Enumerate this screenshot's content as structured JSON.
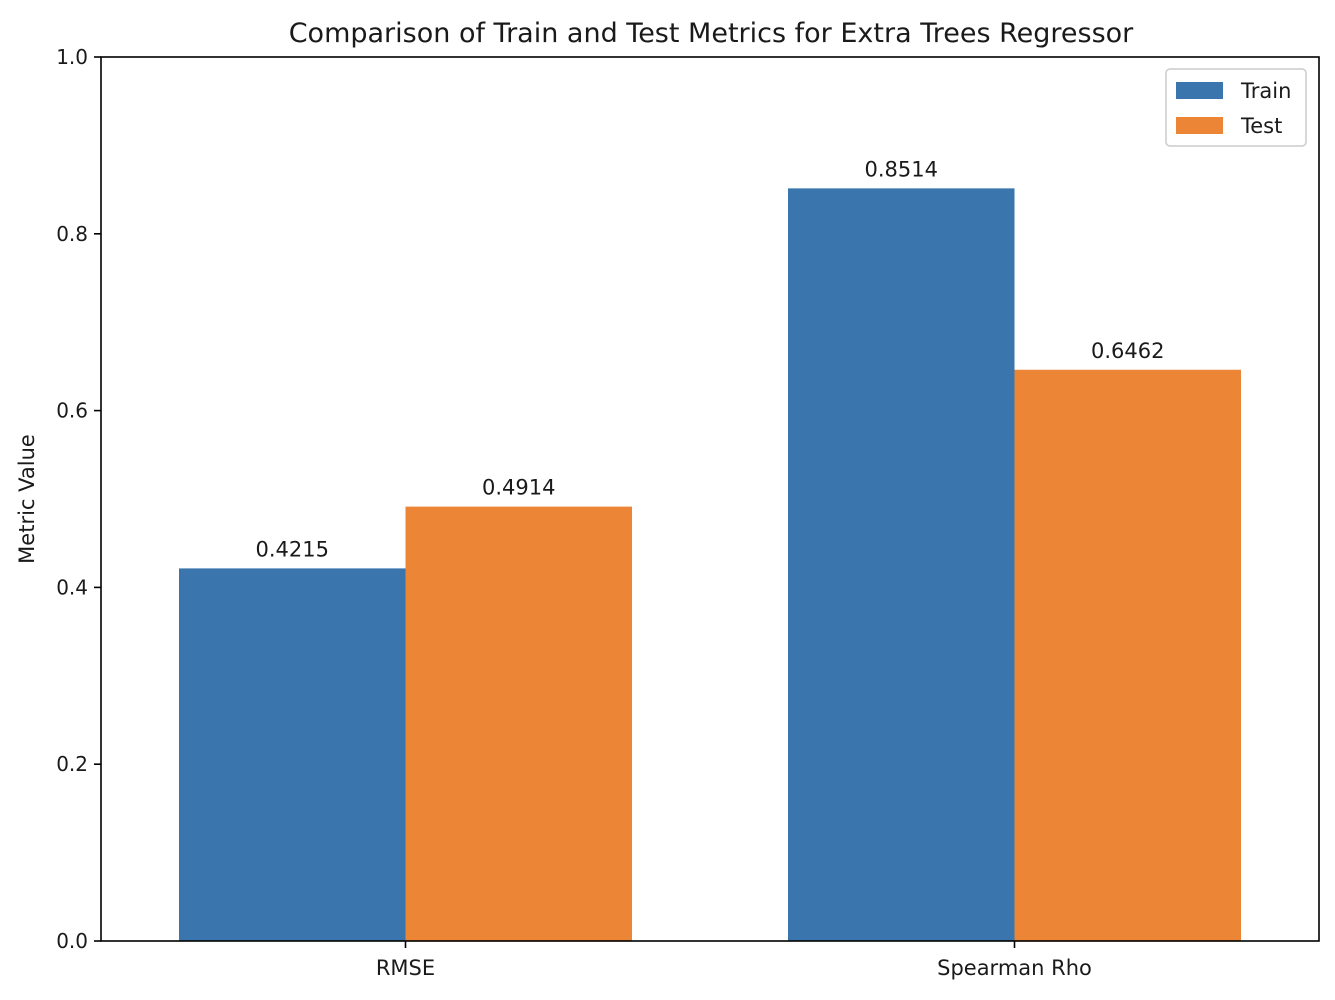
{
  "chart_data": {
    "type": "bar",
    "title": "Comparison of Train and Test Metrics for Extra Trees Regressor",
    "xlabel": "",
    "ylabel": "Metric Value",
    "categories": [
      "RMSE",
      "Spearman Rho"
    ],
    "series": [
      {
        "name": "Train",
        "color": "#3a75ae",
        "values": [
          0.4215,
          0.8514
        ],
        "labels": [
          "0.4215",
          "0.8514"
        ]
      },
      {
        "name": "Test",
        "color": "#ec8636",
        "values": [
          0.4914,
          0.6462
        ],
        "labels": [
          "0.4914",
          "0.6462"
        ]
      }
    ],
    "ylim": [
      0,
      1.0
    ],
    "yticks": [
      {
        "value": 0.0,
        "label": "0.0"
      },
      {
        "value": 0.2,
        "label": "0.2"
      },
      {
        "value": 0.4,
        "label": "0.4"
      },
      {
        "value": 0.6,
        "label": "0.6"
      },
      {
        "value": 0.8,
        "label": "0.8"
      },
      {
        "value": 1.0,
        "label": "1.0"
      }
    ],
    "grid": false,
    "legend_position": "top-right"
  }
}
